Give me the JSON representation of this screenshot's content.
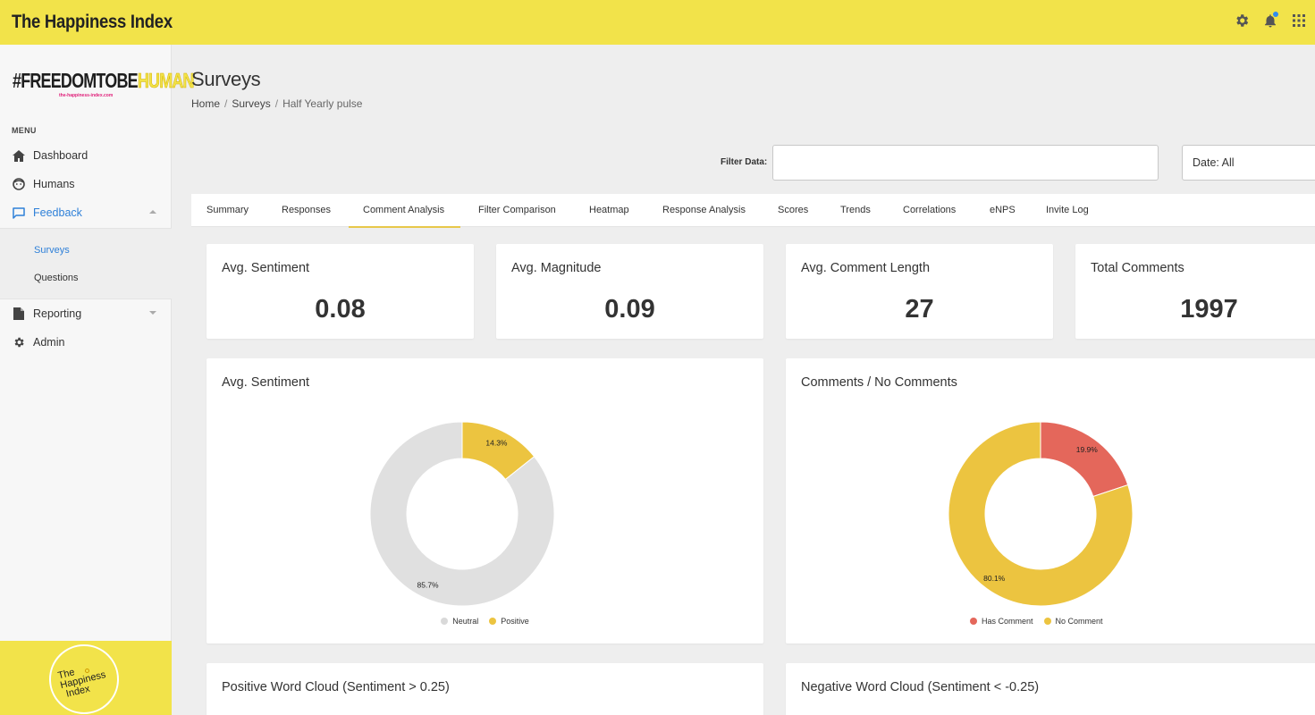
{
  "app": {
    "title": "The Happiness Index"
  },
  "topbar": {
    "icons": [
      "gear-icon",
      "bell-icon",
      "apps-grid-icon"
    ]
  },
  "brand": {
    "logo_dark": "#FREEDOMTOBE",
    "logo_light": "HUMAN",
    "logo_sub": "the-happiness-index.com"
  },
  "sidebar": {
    "menu_heading": "MENU",
    "items": [
      {
        "label": "Dashboard",
        "icon": "home-icon"
      },
      {
        "label": "Humans",
        "icon": "face-icon"
      },
      {
        "label": "Feedback",
        "icon": "chat-icon"
      },
      {
        "label": "Reporting",
        "icon": "document-icon"
      },
      {
        "label": "Admin",
        "icon": "gear-icon"
      }
    ],
    "sub_items": [
      {
        "label": "Surveys"
      },
      {
        "label": "Questions"
      }
    ],
    "footer_logo": {
      "line1": "The",
      "line2": "Happiness",
      "line3": "Index"
    }
  },
  "page": {
    "title": "Surveys",
    "breadcrumb": {
      "home": "Home",
      "sep": "/",
      "surveys": "Surveys",
      "current": "Half Yearly pulse"
    }
  },
  "filters": {
    "filter_label": "Filter Data:",
    "filter_value": "",
    "filter_placeholder": "",
    "date_value": "Date: All"
  },
  "tabs": [
    {
      "label": "Summary"
    },
    {
      "label": "Responses"
    },
    {
      "label": "Comment Analysis"
    },
    {
      "label": "Filter Comparison"
    },
    {
      "label": "Heatmap"
    },
    {
      "label": "Response Analysis"
    },
    {
      "label": "Scores"
    },
    {
      "label": "Trends"
    },
    {
      "label": "Correlations"
    },
    {
      "label": "eNPS"
    },
    {
      "label": "Invite Log"
    }
  ],
  "stats": [
    {
      "label": "Avg. Sentiment",
      "value": "0.08"
    },
    {
      "label": "Avg. Magnitude",
      "value": "0.09"
    },
    {
      "label": "Avg. Comment Length",
      "value": "27"
    },
    {
      "label": "Total Comments",
      "value": "1997"
    }
  ],
  "chart_data": [
    {
      "type": "pie",
      "title": "Avg. Sentiment",
      "categories": [
        "Neutral",
        "Positive"
      ],
      "values": [
        85.7,
        14.3
      ],
      "value_labels": [
        "85.7%",
        "14.3%"
      ],
      "colors": [
        "#e0e0e0",
        "#ecc440"
      ],
      "legend_position": "bottom"
    },
    {
      "type": "pie",
      "title": "Comments / No Comments",
      "categories": [
        "Has Comment",
        "No Comment"
      ],
      "values": [
        19.9,
        80.1
      ],
      "value_labels": [
        "19.9%",
        "80.1%"
      ],
      "colors": [
        "#e4675b",
        "#ecc440"
      ],
      "legend_position": "bottom"
    }
  ],
  "word_clouds": {
    "positive_title": "Positive Word Cloud (Sentiment > 0.25)",
    "negative_title": "Negative Word Cloud (Sentiment < -0.25)"
  }
}
